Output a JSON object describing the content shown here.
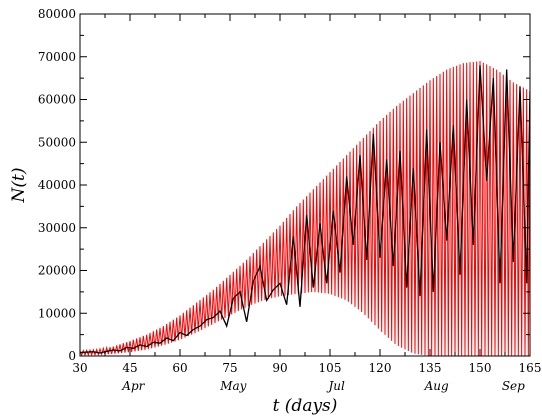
{
  "chart_data": {
    "type": "line",
    "xlabel": "t (days)",
    "ylabel": "N(t)",
    "xlim": [
      30,
      165
    ],
    "ylim": [
      0,
      80000
    ],
    "xticks": [
      30,
      45,
      60,
      75,
      90,
      105,
      120,
      135,
      150,
      165
    ],
    "yticks": [
      0,
      10000,
      20000,
      30000,
      40000,
      50000,
      60000,
      70000,
      80000
    ],
    "month_labels": [
      {
        "label": "Apr",
        "x": 46
      },
      {
        "label": "May",
        "x": 76
      },
      {
        "label": "Jul",
        "x": 107
      },
      {
        "label": "Aug",
        "x": 137
      },
      {
        "label": "Sep",
        "x": 160
      }
    ],
    "grid": false,
    "legend": "none",
    "series": [
      {
        "color": "#ff0000",
        "style": "oscillating band",
        "x": [
          30,
          35,
          40,
          45,
          50,
          55,
          60,
          65,
          70,
          75,
          80,
          85,
          90,
          95,
          100,
          105,
          110,
          115,
          120,
          125,
          130,
          135,
          140,
          145,
          150,
          155,
          160,
          165
        ],
        "upper": [
          1200,
          1500,
          2200,
          3500,
          5000,
          7000,
          9500,
          12500,
          15500,
          19000,
          22500,
          26500,
          30500,
          35000,
          39000,
          43000,
          47000,
          51000,
          55000,
          58500,
          61500,
          64500,
          67000,
          68500,
          69000,
          67000,
          64000,
          62000
        ],
        "lower": [
          200,
          300,
          500,
          900,
          1500,
          2500,
          3800,
          5500,
          7500,
          9500,
          11500,
          13000,
          14000,
          14500,
          15000,
          14500,
          13000,
          10000,
          6000,
          2500,
          600,
          0,
          0,
          0,
          0,
          0,
          0,
          0
        ]
      },
      {
        "color": "#000000",
        "style": "line",
        "x": [
          30,
          32,
          34,
          36,
          38,
          40,
          42,
          44,
          46,
          48,
          50,
          52,
          54,
          56,
          58,
          60,
          62,
          64,
          66,
          68,
          70,
          72,
          74,
          76,
          78,
          80,
          82,
          84,
          86,
          88,
          90,
          92,
          94,
          96,
          98,
          100,
          102,
          104,
          106,
          108,
          110,
          112,
          114,
          116,
          118,
          120,
          122,
          124,
          126,
          128,
          130,
          132,
          134,
          136,
          138,
          140,
          142,
          144,
          146,
          148,
          150,
          152,
          154,
          156,
          158,
          160,
          162,
          164,
          165
        ],
        "y": [
          800,
          900,
          1000,
          700,
          1100,
          1400,
          1200,
          2000,
          1800,
          2600,
          2200,
          3200,
          3000,
          4200,
          3600,
          5500,
          4800,
          6200,
          7000,
          8500,
          9000,
          10500,
          7000,
          13500,
          15000,
          8000,
          17500,
          21000,
          13000,
          15500,
          17000,
          12000,
          28000,
          11500,
          33000,
          16000,
          31000,
          17000,
          34000,
          19500,
          42000,
          26000,
          47000,
          22500,
          52000,
          23000,
          46000,
          21000,
          48000,
          16000,
          44000,
          14000,
          53000,
          15000,
          50000,
          27000,
          54000,
          19000,
          60000,
          26000,
          68000,
          41000,
          65000,
          17000,
          67000,
          22000,
          63000,
          17000,
          62000
        ]
      }
    ]
  }
}
